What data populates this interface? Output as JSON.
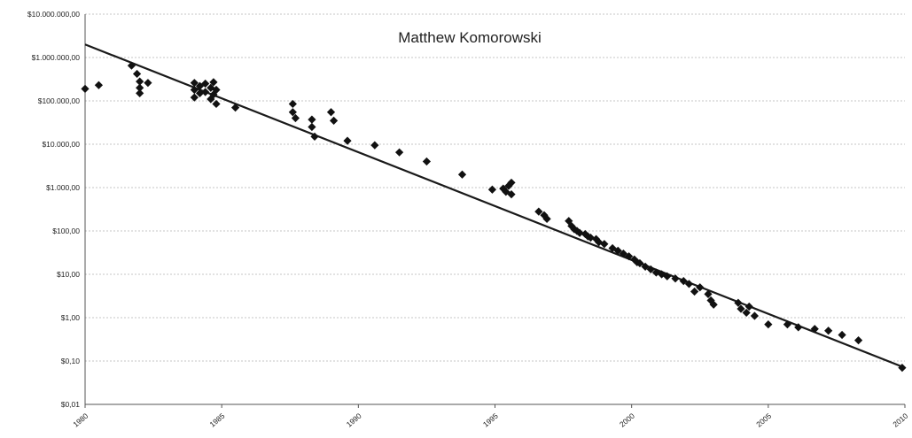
{
  "chart_data": {
    "type": "scatter",
    "title": "Matthew Komorowski",
    "xlabel": "",
    "ylabel": "",
    "xlim": [
      1980,
      2010
    ],
    "ylim": [
      0.01,
      10000000
    ],
    "yscale": "log",
    "grid": true,
    "x_ticks": [
      1980,
      1985,
      1990,
      1995,
      2000,
      2005,
      2010
    ],
    "x_tick_labels": [
      "1980",
      "1985",
      "1990",
      "1995",
      "2000",
      "2005",
      "2010"
    ],
    "y_ticks": [
      0.01,
      0.1,
      1,
      10,
      100,
      1000,
      10000,
      100000,
      1000000,
      10000000
    ],
    "y_tick_labels": [
      "$0,01",
      "$0,10",
      "$1,00",
      "$10,00",
      "$100,00",
      "$1.000,00",
      "$10.000,00",
      "$100.000,00",
      "$1.000.000,00",
      "$10.000.000,00"
    ],
    "trendline": {
      "x": [
        1980,
        2010
      ],
      "y": [
        2000000,
        0.07
      ]
    },
    "series": [
      {
        "marker": "diamond",
        "points": [
          [
            1980.0,
            190000
          ],
          [
            1980.5,
            230000
          ],
          [
            1981.7,
            650000
          ],
          [
            1981.9,
            420000
          ],
          [
            1982.0,
            280000
          ],
          [
            1982.0,
            200000
          ],
          [
            1982.0,
            150000
          ],
          [
            1982.3,
            260000
          ],
          [
            1984.0,
            260000
          ],
          [
            1984.0,
            180000
          ],
          [
            1984.0,
            120000
          ],
          [
            1984.2,
            220000
          ],
          [
            1984.2,
            150000
          ],
          [
            1984.4,
            250000
          ],
          [
            1984.4,
            160000
          ],
          [
            1984.6,
            200000
          ],
          [
            1984.6,
            110000
          ],
          [
            1984.7,
            270000
          ],
          [
            1984.7,
            140000
          ],
          [
            1984.8,
            180000
          ],
          [
            1984.8,
            85000
          ],
          [
            1985.5,
            70000
          ],
          [
            1987.6,
            85000
          ],
          [
            1987.6,
            55000
          ],
          [
            1987.7,
            40000
          ],
          [
            1988.3,
            37000
          ],
          [
            1988.3,
            25000
          ],
          [
            1988.4,
            15000
          ],
          [
            1989.0,
            55000
          ],
          [
            1989.1,
            35000
          ],
          [
            1989.6,
            12000
          ],
          [
            1990.6,
            9500
          ],
          [
            1991.5,
            6500
          ],
          [
            1992.5,
            4000
          ],
          [
            1993.8,
            2000
          ],
          [
            1994.9,
            900
          ],
          [
            1995.3,
            950
          ],
          [
            1995.4,
            800
          ],
          [
            1995.5,
            1100
          ],
          [
            1995.6,
            1300
          ],
          [
            1995.6,
            700
          ],
          [
            1996.6,
            280
          ],
          [
            1996.8,
            230
          ],
          [
            1996.9,
            190
          ],
          [
            1997.7,
            170
          ],
          [
            1997.8,
            130
          ],
          [
            1997.9,
            110
          ],
          [
            1998.0,
            100
          ],
          [
            1998.1,
            90
          ],
          [
            1998.3,
            85
          ],
          [
            1998.4,
            75
          ],
          [
            1998.5,
            70
          ],
          [
            1998.7,
            65
          ],
          [
            1998.8,
            55
          ],
          [
            1999.0,
            50
          ],
          [
            1999.3,
            40
          ],
          [
            1999.5,
            35
          ],
          [
            1999.7,
            30
          ],
          [
            1999.9,
            26
          ],
          [
            2000.1,
            22
          ],
          [
            2000.2,
            19
          ],
          [
            2000.3,
            18
          ],
          [
            2000.5,
            15
          ],
          [
            2000.7,
            13
          ],
          [
            2000.9,
            11
          ],
          [
            2001.1,
            10
          ],
          [
            2001.3,
            9
          ],
          [
            2001.6,
            8
          ],
          [
            2001.9,
            7
          ],
          [
            2002.1,
            6
          ],
          [
            2002.3,
            4
          ],
          [
            2002.5,
            5
          ],
          [
            2002.8,
            3.5
          ],
          [
            2002.9,
            2.5
          ],
          [
            2003.0,
            2
          ],
          [
            2003.9,
            2.2
          ],
          [
            2004.0,
            1.6
          ],
          [
            2004.2,
            1.3
          ],
          [
            2004.3,
            1.8
          ],
          [
            2004.5,
            1.1
          ],
          [
            2005.0,
            0.7
          ],
          [
            2005.7,
            0.7
          ],
          [
            2006.1,
            0.6
          ],
          [
            2006.7,
            0.55
          ],
          [
            2007.2,
            0.5
          ],
          [
            2007.7,
            0.4
          ],
          [
            2008.3,
            0.3
          ],
          [
            2009.9,
            0.07
          ]
        ]
      }
    ]
  }
}
